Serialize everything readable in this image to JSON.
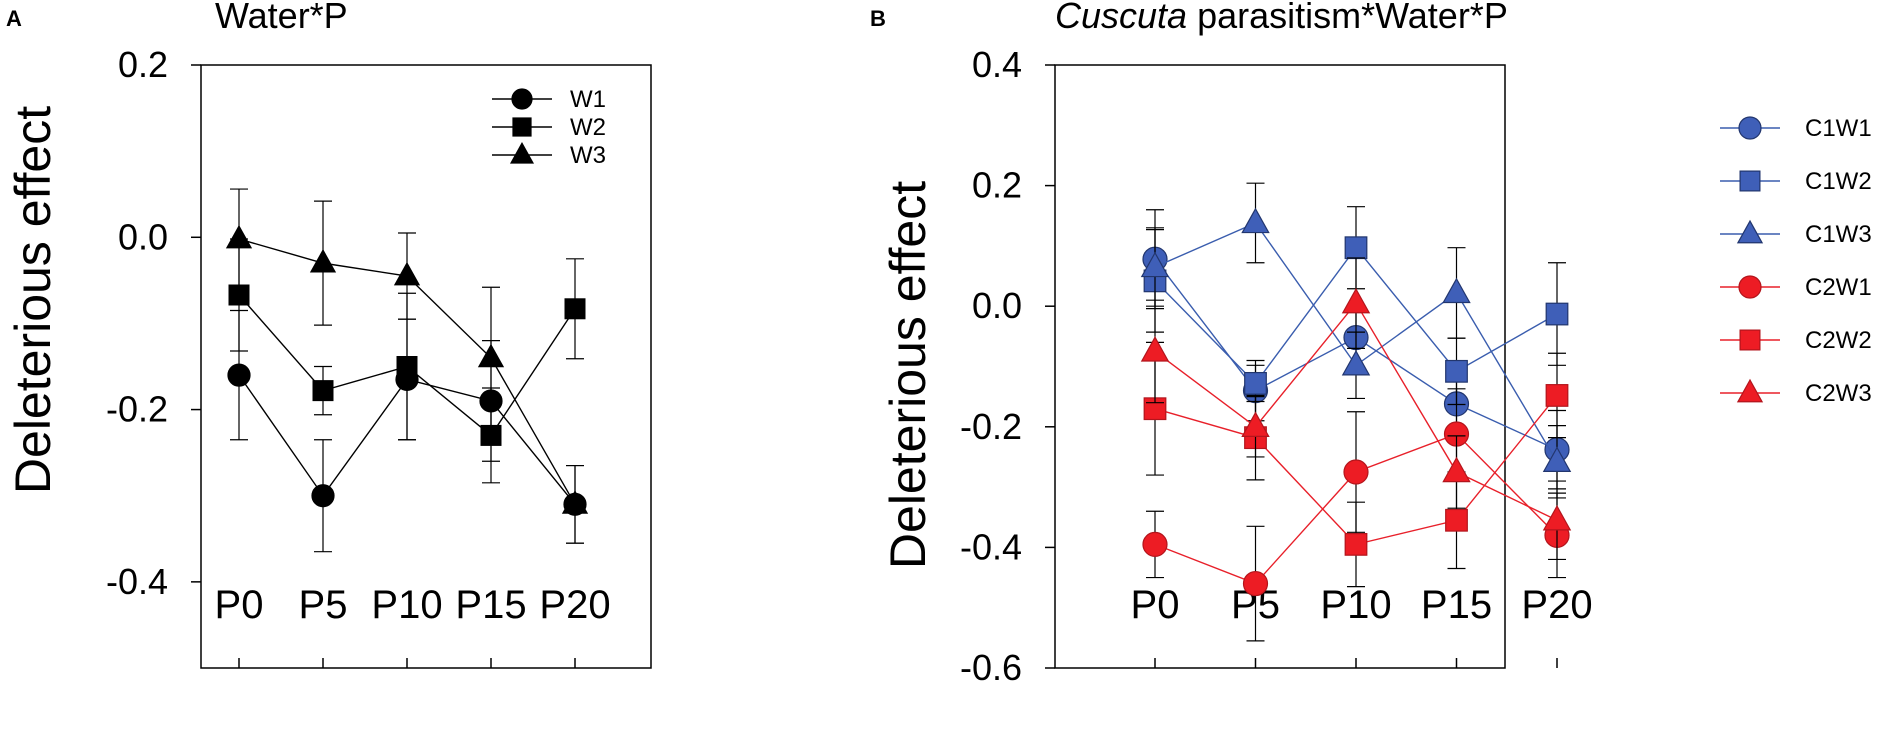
{
  "chart_data": [
    {
      "type": "line",
      "panel_label": "A",
      "title": "Water*P",
      "title_italic": "",
      "title_rest": "Water*P",
      "ylabel": "Deleterious effect",
      "xlabel": "",
      "categories": [
        "P0",
        "P5",
        "P10",
        "P15",
        "P20"
      ],
      "ylim": [
        -0.5,
        0.2
      ],
      "yticks": [
        0.2,
        0.0,
        -0.2,
        -0.4
      ],
      "ytick_labels": [
        "0.2",
        "0.0",
        "-0.2",
        "-0.4"
      ],
      "legend_position": "top-right",
      "series": [
        {
          "name": "W1",
          "marker": "circle",
          "color": "#000000",
          "fill": "#000000",
          "values": [
            -0.16,
            -0.3,
            -0.165,
            -0.19,
            -0.31
          ],
          "errors": [
            0.075,
            0.065,
            0.07,
            0.07,
            0.045
          ]
        },
        {
          "name": "W2",
          "marker": "square",
          "color": "#000000",
          "fill": "#000000",
          "values": [
            -0.067,
            -0.178,
            -0.15,
            -0.23,
            -0.083
          ],
          "errors": [
            0.065,
            0.028,
            0.085,
            0.055,
            0.058
          ]
        },
        {
          "name": "W3",
          "marker": "triangle",
          "color": "#000000",
          "fill": "#000000",
          "values": [
            -0.002,
            -0.03,
            -0.045,
            -0.14,
            -0.31
          ],
          "errors": [
            0.058,
            0.072,
            0.05,
            0.082,
            0.045
          ]
        }
      ]
    },
    {
      "type": "line",
      "panel_label": "B",
      "title": "Cuscuta parasitism*Water*P",
      "title_italic": "Cuscuta",
      "title_rest": " parasitism*Water*P",
      "ylabel": "Deleterious effect",
      "xlabel": "",
      "categories": [
        "P0",
        "P5",
        "P10",
        "P15",
        "P20"
      ],
      "ylim": [
        -0.6,
        0.4
      ],
      "yticks": [
        0.4,
        0.2,
        0.0,
        -0.2,
        -0.4,
        -0.6
      ],
      "ytick_labels": [
        "0.4",
        "0.2",
        "0.0",
        "-0.2",
        "-0.4",
        "-0.6"
      ],
      "legend_position": "right",
      "series": [
        {
          "name": "C1W1",
          "marker": "circle",
          "color": "#3a5dae",
          "fill": "#3f5fb8",
          "values": [
            0.078,
            -0.14,
            -0.052,
            -0.162,
            -0.238
          ],
          "errors": [
            0.082,
            0.05,
            0.05,
            0.05,
            0.065
          ]
        },
        {
          "name": "C1W2",
          "marker": "square",
          "color": "#3a5dae",
          "fill": "#3f5fb8",
          "values": [
            0.042,
            -0.128,
            0.097,
            -0.108,
            -0.013
          ],
          "errors": [
            0.085,
            0.03,
            0.068,
            0.055,
            0.085
          ]
        },
        {
          "name": "C1W3",
          "marker": "triangle",
          "color": "#3a5dae",
          "fill": "#3f5fb8",
          "values": [
            0.065,
            0.138,
            -0.098,
            0.022,
            -0.258
          ],
          "errors": [
            0.065,
            0.066,
            0.055,
            0.075,
            0.06
          ]
        },
        {
          "name": "C2W1",
          "marker": "circle",
          "color": "#e8202a",
          "fill": "#ed1c24",
          "values": [
            -0.395,
            -0.46,
            -0.275,
            -0.212,
            -0.38
          ],
          "errors": [
            0.055,
            0.095,
            0.1,
            0.075,
            0.07
          ]
        },
        {
          "name": "C2W2",
          "marker": "square",
          "color": "#e8202a",
          "fill": "#ed1c24",
          "values": [
            -0.17,
            -0.218,
            -0.395,
            -0.355,
            -0.148
          ],
          "errors": [
            0.11,
            0.07,
            0.07,
            0.08,
            0.07
          ]
        },
        {
          "name": "C2W3",
          "marker": "triangle",
          "color": "#e8202a",
          "fill": "#ed1c24",
          "values": [
            -0.075,
            -0.2,
            0.005,
            -0.275,
            -0.355
          ],
          "errors": [
            0.085,
            0.05,
            0.075,
            0.06,
            0.065
          ]
        }
      ]
    }
  ]
}
